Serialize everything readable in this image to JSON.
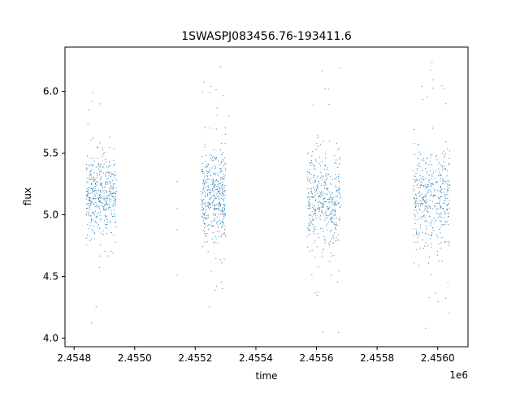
{
  "chart_data": {
    "type": "scatter",
    "title": "1SWASPJ083456.76-193411.6",
    "xlabel": "time",
    "ylabel": "flux",
    "x_offset_label": "1e6",
    "xlim": [
      2.45477,
      2.4561
    ],
    "ylim": [
      3.93,
      6.36
    ],
    "grid": false,
    "legend": "none",
    "marker_color": "#1f77b4",
    "x_ticks": [
      {
        "value": 2.4548,
        "label": "2.4548"
      },
      {
        "value": 2.455,
        "label": "2.4550"
      },
      {
        "value": 2.4552,
        "label": "2.4552"
      },
      {
        "value": 2.4554,
        "label": "2.4554"
      },
      {
        "value": 2.4556,
        "label": "2.4556"
      },
      {
        "value": 2.4558,
        "label": "2.4558"
      },
      {
        "value": 2.456,
        "label": "2.4560"
      }
    ],
    "y_ticks": [
      {
        "value": 4.0,
        "label": "4.0"
      },
      {
        "value": 4.5,
        "label": "4.5"
      },
      {
        "value": 5.0,
        "label": "5.0"
      },
      {
        "value": 5.5,
        "label": "5.5"
      },
      {
        "value": 6.0,
        "label": "6.0"
      }
    ],
    "clusters": [
      {
        "x_start": 2.45484,
        "x_end": 2.45494,
        "center": 5.15,
        "spread": 0.17,
        "min": 4.05,
        "max": 6.05
      },
      {
        "x_start": 2.45522,
        "x_end": 2.4553,
        "center": 5.15,
        "spread": 0.18,
        "min": 4.22,
        "max": 6.25
      },
      {
        "x_start": 2.45557,
        "x_end": 2.45568,
        "center": 5.1,
        "spread": 0.2,
        "min": 4.04,
        "max": 6.22
      },
      {
        "x_start": 2.45592,
        "x_end": 2.45604,
        "center": 5.12,
        "spread": 0.2,
        "min": 4.06,
        "max": 6.24
      }
    ]
  }
}
